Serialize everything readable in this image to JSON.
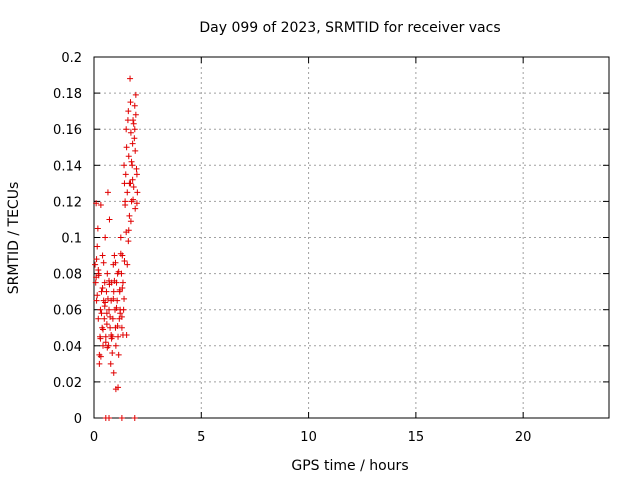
{
  "chart_data": {
    "type": "scatter",
    "title": "Day 099 of 2023, SRMTID for receiver vacs",
    "xlabel": "GPS time / hours",
    "ylabel": "SRMTID / TECUs",
    "xlim": [
      0,
      24
    ],
    "ylim": [
      0,
      0.2
    ],
    "x_ticks": [
      0,
      5,
      10,
      15,
      20
    ],
    "y_ticks": [
      0,
      0.02,
      0.04,
      0.06,
      0.08,
      0.1,
      0.12,
      0.14,
      0.16,
      0.18,
      0.2
    ],
    "grid": true,
    "marker": "plus",
    "color": "#e00000",
    "series": [
      {
        "x": [
          0.05,
          0.08,
          0.1,
          0.12,
          0.15,
          0.18,
          0.2,
          0.22,
          0.25,
          0.28,
          0.3,
          0.32,
          0.35,
          0.38,
          0.4,
          0.42,
          0.45,
          0.48,
          0.5,
          0.52,
          0.55,
          0.58,
          0.6,
          0.62,
          0.65,
          0.68,
          0.7,
          0.72,
          0.75,
          0.78,
          0.8,
          0.82,
          0.85,
          0.88,
          0.9,
          0.92,
          0.95,
          0.98,
          1.0,
          1.02,
          1.05,
          1.08,
          1.1,
          1.12,
          1.15,
          1.18,
          1.2,
          1.22,
          1.25,
          1.28,
          1.3,
          1.32,
          1.35,
          1.38,
          1.4,
          1.42,
          1.45,
          1.48,
          1.5,
          1.52,
          1.55,
          1.58,
          1.6,
          1.62,
          1.65,
          1.68,
          1.7,
          1.72,
          1.75,
          1.78,
          1.8,
          1.82,
          1.85,
          1.88,
          1.9,
          1.92,
          1.95,
          1.98,
          2.0,
          2.02,
          0.1,
          0.15,
          0.2,
          0.25,
          0.3,
          0.35,
          0.4,
          0.45,
          0.5,
          0.55,
          0.6,
          0.65,
          0.7,
          0.75,
          0.8,
          0.85,
          0.9,
          0.95,
          1.0,
          1.05,
          1.1,
          1.15,
          1.2,
          1.25,
          1.3,
          1.35,
          1.4,
          1.45,
          1.5,
          1.55,
          1.6,
          1.65,
          1.7,
          1.75,
          1.8,
          1.85,
          1.9,
          1.95,
          2.0,
          0.12,
          0.22,
          0.32,
          0.42,
          0.52,
          0.62,
          0.72,
          0.82,
          0.92,
          1.02,
          1.12,
          1.22,
          1.32,
          1.42,
          1.52,
          1.62,
          1.72,
          1.82,
          1.92,
          0.55,
          0.7,
          1.3,
          1.9
        ],
        "y": [
          0.085,
          0.075,
          0.119,
          0.065,
          0.095,
          0.105,
          0.055,
          0.08,
          0.035,
          0.045,
          0.06,
          0.118,
          0.07,
          0.05,
          0.09,
          0.04,
          0.065,
          0.055,
          0.075,
          0.1,
          0.045,
          0.07,
          0.058,
          0.08,
          0.125,
          0.04,
          0.06,
          0.11,
          0.05,
          0.03,
          0.065,
          0.075,
          0.045,
          0.055,
          0.085,
          0.07,
          0.09,
          0.06,
          0.05,
          0.04,
          0.075,
          0.065,
          0.08,
          0.045,
          0.035,
          0.055,
          0.07,
          0.06,
          0.1,
          0.08,
          0.05,
          0.09,
          0.075,
          0.06,
          0.14,
          0.13,
          0.12,
          0.135,
          0.16,
          0.15,
          0.125,
          0.165,
          0.17,
          0.145,
          0.13,
          0.188,
          0.175,
          0.158,
          0.12,
          0.14,
          0.132,
          0.165,
          0.128,
          0.155,
          0.16,
          0.148,
          0.168,
          0.138,
          0.135,
          0.125,
          0.078,
          0.068,
          0.082,
          0.03,
          0.044,
          0.058,
          0.072,
          0.086,
          0.062,
          0.042,
          0.052,
          0.066,
          0.076,
          0.056,
          0.046,
          0.036,
          0.066,
          0.076,
          0.086,
          0.061,
          0.051,
          0.081,
          0.071,
          0.091,
          0.056,
          0.046,
          0.066,
          0.118,
          0.103,
          0.085,
          0.098,
          0.112,
          0.13,
          0.142,
          0.152,
          0.163,
          0.173,
          0.179,
          0.119,
          0.088,
          0.079,
          0.034,
          0.049,
          0.064,
          0.039,
          0.074,
          0.044,
          0.025,
          0.016,
          0.017,
          0.058,
          0.072,
          0.087,
          0.046,
          0.104,
          0.109,
          0.121,
          0.116,
          0.0,
          0.0,
          0.0,
          0.0
        ]
      }
    ]
  }
}
